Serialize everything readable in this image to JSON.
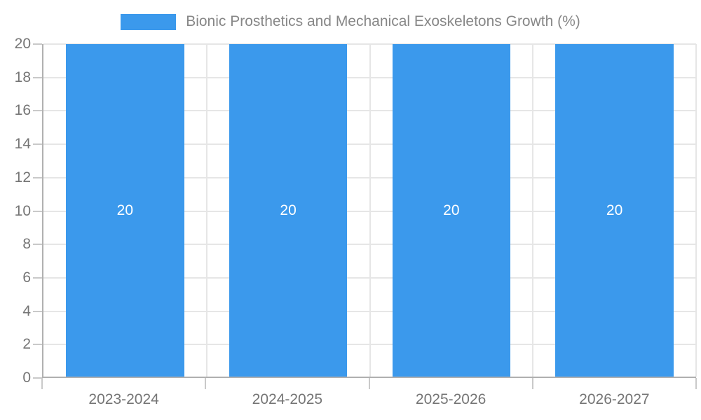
{
  "chart_data": {
    "type": "bar",
    "title": "Bionic Prosthetics and Mechanical Exoskeletons Growth (%)",
    "categories": [
      "2023-2024",
      "2024-2025",
      "2025-2026",
      "2026-2027"
    ],
    "values": [
      20,
      20,
      20,
      20
    ],
    "bar_value_labels": [
      "20",
      "20",
      "20",
      "20"
    ],
    "ylim": [
      0,
      20
    ],
    "ytick_step": 2,
    "yticks": [
      0,
      2,
      4,
      6,
      8,
      10,
      12,
      14,
      16,
      18,
      20
    ],
    "grid": true,
    "legend_position": "top-center",
    "legend_entries": [
      {
        "label": "Bionic Prosthetics and Mechanical Exoskeletons Growth (%)",
        "color": "#3B99EC"
      }
    ],
    "colors": {
      "bar": "#3B99EC",
      "bar_label_text": "#FFFFFF",
      "legend_text": "#878787",
      "tick_text": "#757575",
      "axis_line": "#B0B0B0",
      "gridline": "#E6E6E6",
      "tick_mark": "#C9C9C9",
      "background": "#FFFFFF"
    }
  }
}
